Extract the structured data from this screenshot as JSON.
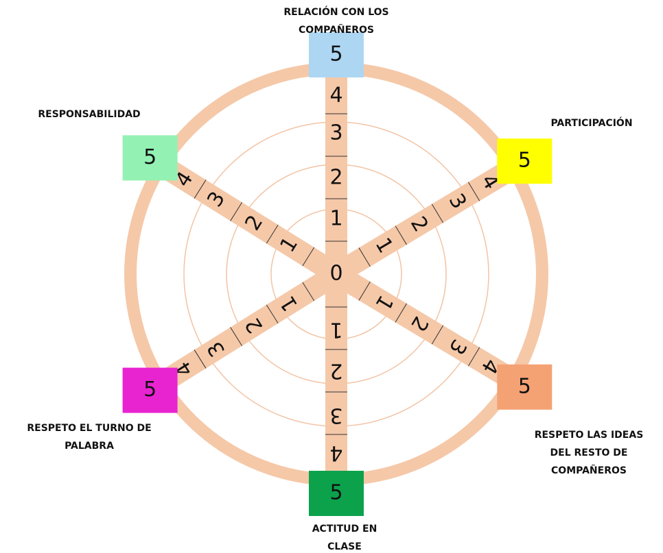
{
  "center": "0",
  "levels": [
    "1",
    "2",
    "3",
    "4",
    "5"
  ],
  "axes": [
    {
      "label": [
        "RELACIÓN CON LOS",
        "COMPAÑEROS"
      ],
      "color": "#add6f3"
    },
    {
      "label": [
        "PARTICIPACIÓN"
      ],
      "color": "#ffff00"
    },
    {
      "label": [
        "RESPETO LAS IDEAS",
        "DEL RESTO DE",
        "COMPAÑEROS"
      ],
      "color": "#f4a274"
    },
    {
      "label": [
        "ACTITUD EN",
        "CLASE"
      ],
      "color": "#0ca24c"
    },
    {
      "label": [
        "RESPETO EL TURNO DE",
        "PALABRA"
      ],
      "color": "#e824d0"
    },
    {
      "label": [
        "RESPONSABILIDAD"
      ],
      "color": "#93f1b3"
    }
  ]
}
